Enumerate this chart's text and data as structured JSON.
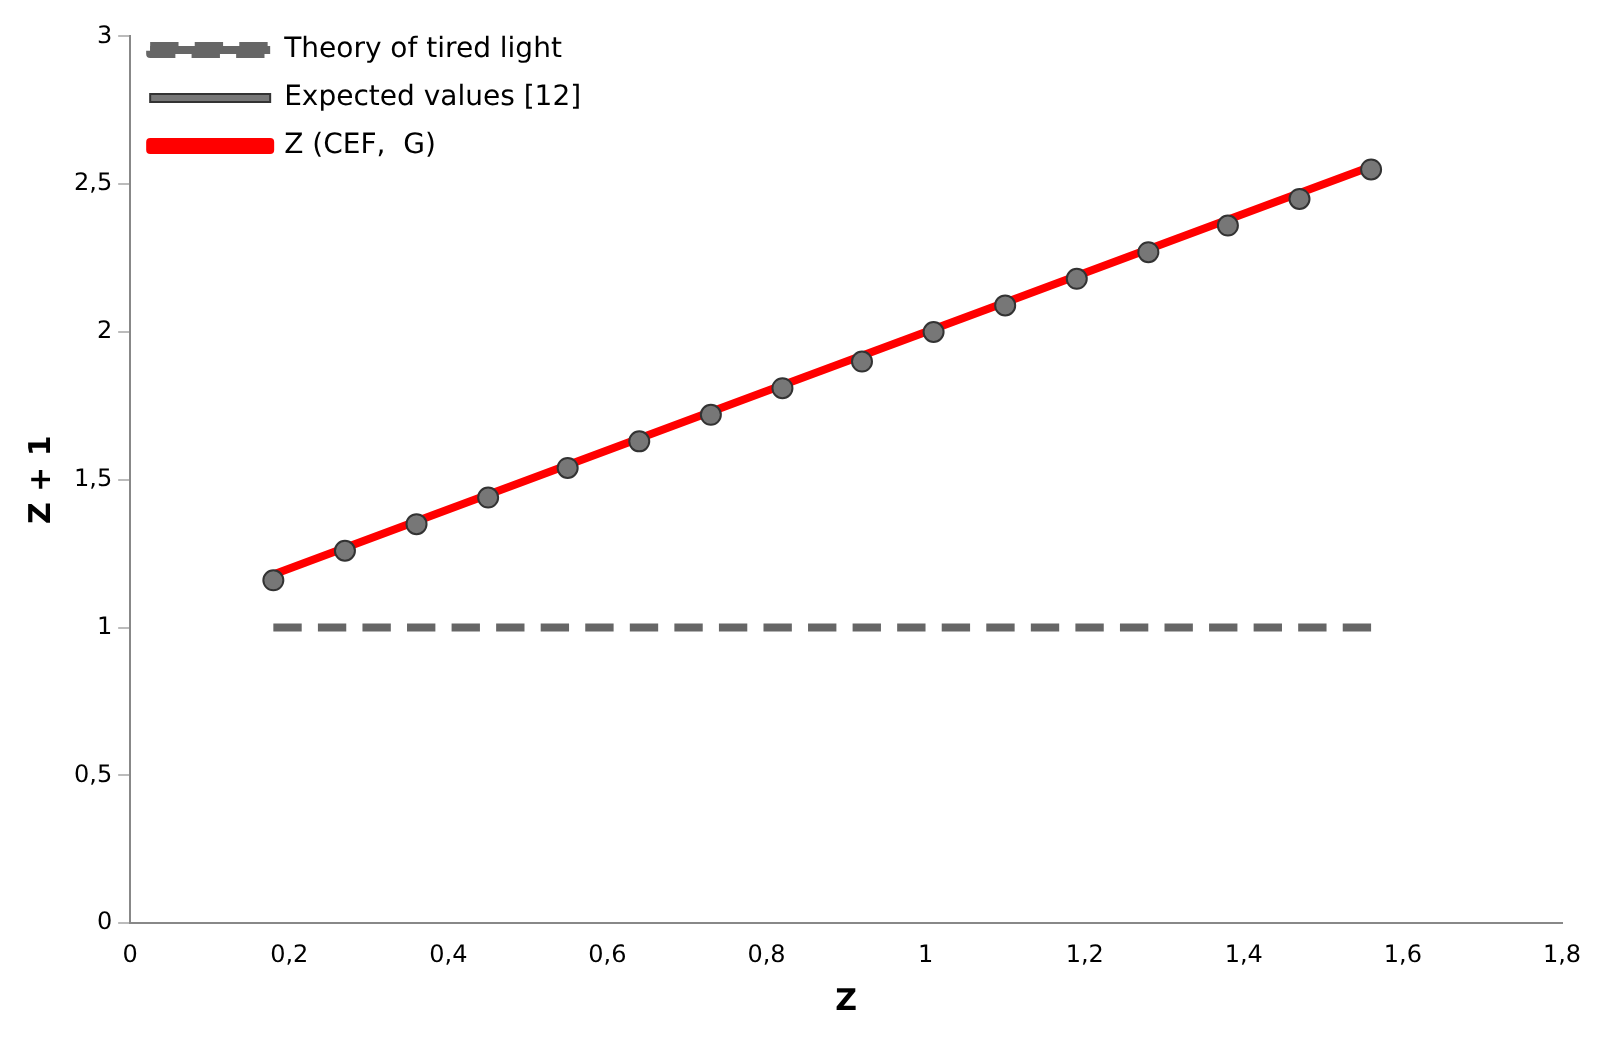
{
  "chart_data": {
    "type": "line",
    "xlabel": "Z",
    "ylabel": "Z + 1",
    "xlim": [
      0,
      1.8
    ],
    "xticks": [
      0,
      {
        "value": 0.2,
        "label": "0,2"
      },
      {
        "value": 0.4,
        "label": "0,4"
      },
      {
        "value": 0.6,
        "label": "0,6"
      },
      {
        "value": 0.8,
        "label": "0,8"
      },
      1,
      {
        "value": 1.2,
        "label": "1,2"
      },
      {
        "value": 1.4,
        "label": "1,4"
      },
      {
        "value": 1.6,
        "label": "1,6"
      },
      {
        "value": 1.8,
        "label": "1,8"
      }
    ],
    "ylim": [
      0,
      3
    ],
    "yticks": [
      0,
      {
        "value": 0.5,
        "label": "0,5"
      },
      1,
      {
        "value": 1.5,
        "label": "1,5"
      },
      2,
      {
        "value": 2.5,
        "label": "2,5"
      },
      3
    ],
    "grid": false,
    "legend": "top left",
    "series": [
      {
        "name": "Theory of tired light",
        "type": "line",
        "color": "#666666",
        "line_style": "dashed",
        "marker": "none",
        "x": [
          0.18,
          1.56
        ],
        "values": [
          1,
          1
        ]
      },
      {
        "name": "Expected values [12]",
        "type": "scatter",
        "color": "#777777",
        "marker": "circle",
        "x": [
          0.18,
          0.27,
          0.36,
          0.45,
          0.55,
          0.64,
          0.73,
          0.82,
          0.92,
          1.01,
          1.1,
          1.19,
          1.28,
          1.38,
          1.47,
          1.56
        ],
        "values": [
          1.16,
          1.26,
          1.35,
          1.44,
          1.54,
          1.63,
          1.72,
          1.81,
          1.9,
          2.0,
          2.09,
          2.18,
          2.27,
          2.36,
          2.45,
          2.55
        ]
      },
      {
        "name": "Z (CEF,  G)",
        "type": "line",
        "color": "#ff0000",
        "line_style": "solid",
        "marker": "none",
        "x": [
          0.18,
          1.56
        ],
        "values": [
          1.18,
          2.56
        ]
      }
    ]
  }
}
